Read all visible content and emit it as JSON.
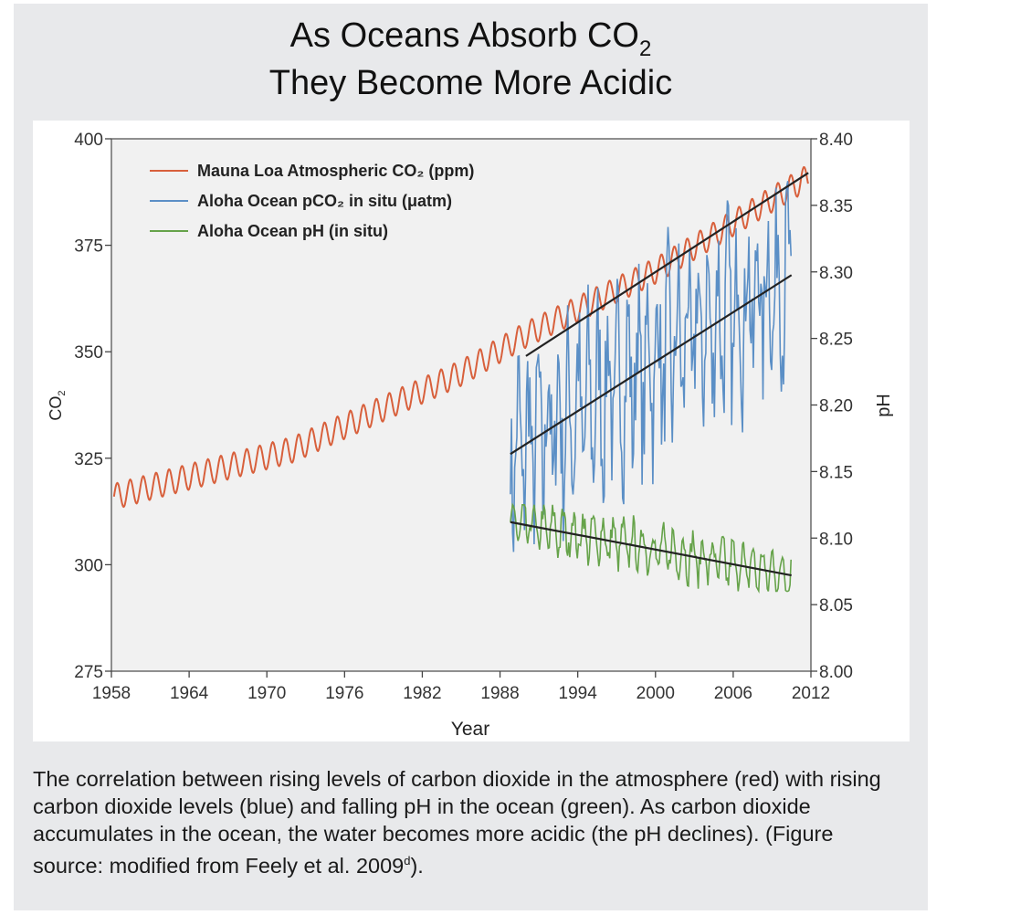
{
  "title": {
    "line1_prefix": "As Oceans Absorb CO",
    "line1_sub": "2",
    "line2": "They Become More Acidic"
  },
  "caption": {
    "text": "The correlation between rising levels of carbon dioxide in the atmosphere (red) with rising carbon dioxide levels (blue) and falling pH in the ocean (green). As carbon dioxide accumulates in the ocean, the water becomes more acidic (the pH declines). (Figure source: modified from Feely et al. 2009",
    "sup": "d",
    "end": ")."
  },
  "chart_data": {
    "type": "line",
    "xlabel": "Year",
    "ylabel_left": "CO",
    "ylabel_left_sub": "2",
    "ylabel_right": "pH",
    "xlim": [
      1958,
      2012
    ],
    "ylim_left": [
      275,
      400
    ],
    "ylim_right": [
      8.0,
      8.4
    ],
    "x_ticks": [
      "1958",
      "1964",
      "1970",
      "1976",
      "1982",
      "1988",
      "1994",
      "2000",
      "2006",
      "2012"
    ],
    "y_left_ticks": [
      "275",
      "300",
      "325",
      "350",
      "375",
      "400"
    ],
    "y_right_ticks": [
      "8.00",
      "8.05",
      "8.10",
      "8.15",
      "8.20",
      "8.25",
      "8.30",
      "8.35",
      "8.40"
    ],
    "legend_position": "top-left",
    "grid": false,
    "colors": {
      "co2": "#d8603c",
      "pco2": "#5b8fc6",
      "ph": "#66a34a",
      "trend": "#222222"
    },
    "series": [
      {
        "name": "Mauna Loa Atmospheric CO₂ (ppm)",
        "axis": "left",
        "color": "#d8603c",
        "x_range": [
          1958.2,
          2011.8
        ],
        "trend": {
          "x": [
            1958.2,
            1972,
            1985,
            1990,
            2000,
            2011.8
          ],
          "y": [
            316,
            327,
            345,
            354,
            369,
            391
          ]
        },
        "seasonal_amplitude": 3
      },
      {
        "name": "Aloha Ocean pCO₂ in situ (μatm)",
        "axis": "left",
        "color": "#5b8fc6",
        "x_range": [
          1988.8,
          2010.5
        ],
        "trend": {
          "x": [
            1988.8,
            2010.5
          ],
          "y": [
            326,
            368
          ]
        },
        "amplitude": 15,
        "min": 303,
        "max": 395
      },
      {
        "name": "Aloha Ocean pH (in situ)",
        "axis": "right",
        "color": "#66a34a",
        "x_range": [
          1988.8,
          2010.5
        ],
        "trend": {
          "x": [
            1988.8,
            2010.5
          ],
          "y": [
            8.112,
            8.072
          ]
        },
        "amplitude": 0.015,
        "min": 8.06,
        "max": 8.125
      }
    ],
    "trend_lines": [
      {
        "axis": "left",
        "x": [
          1990,
          2011.8
        ],
        "y": [
          349,
          392
        ]
      },
      {
        "axis": "left",
        "x": [
          1988.8,
          2010.5
        ],
        "y": [
          326,
          368
        ]
      },
      {
        "axis": "right",
        "x": [
          1988.8,
          2010.5
        ],
        "y": [
          8.112,
          8.072
        ]
      }
    ]
  }
}
